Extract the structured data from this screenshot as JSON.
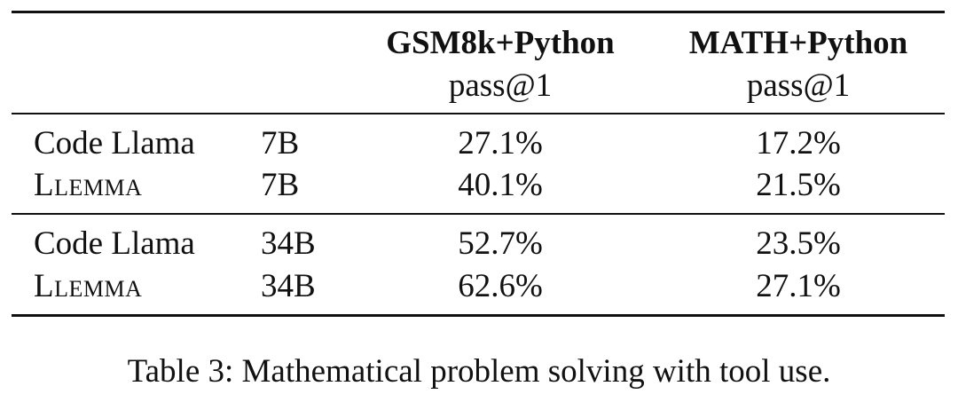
{
  "table": {
    "header": {
      "col1_title": "GSM8k+Python",
      "col1_sub": "pass@1",
      "col2_title": "MATH+Python",
      "col2_sub": "pass@1"
    },
    "rows": [
      {
        "model": "Code Llama",
        "size": "7B",
        "gsm": "27.1%",
        "math": "17.2%"
      },
      {
        "model": "Llemma",
        "size": "7B",
        "gsm": "40.1%",
        "math": "21.5%"
      },
      {
        "model": "Code Llama",
        "size": "34B",
        "gsm": "52.7%",
        "math": "23.5%"
      },
      {
        "model": "Llemma",
        "size": "34B",
        "gsm": "62.6%",
        "math": "27.1%"
      }
    ]
  },
  "caption": "Table 3: Mathematical problem solving with tool use."
}
